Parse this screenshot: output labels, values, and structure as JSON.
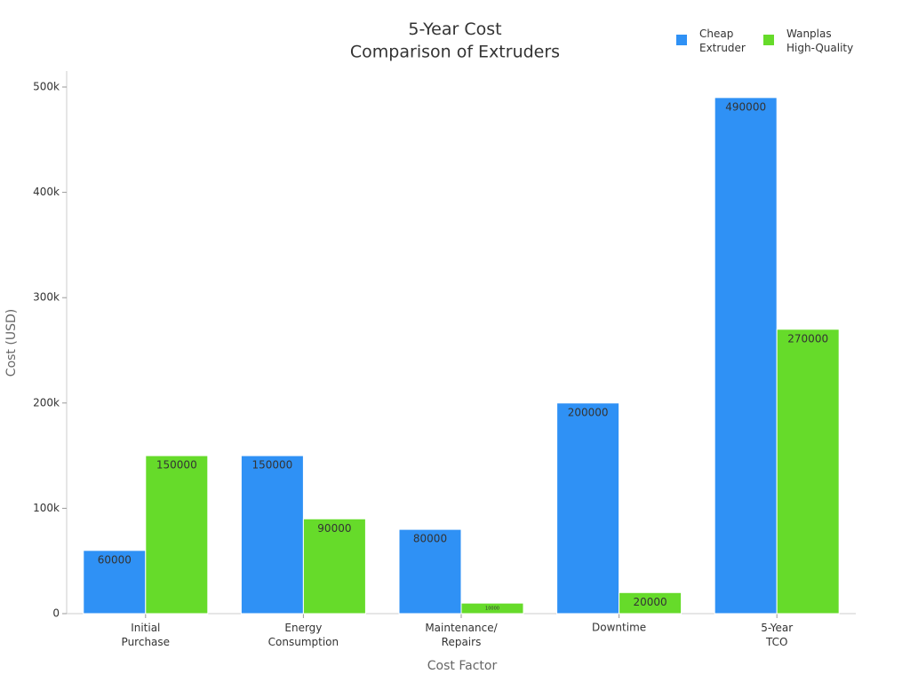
{
  "chart_data": {
    "type": "bar",
    "title": "5-Year Cost\nComparison of Extruders",
    "x_label": "Cost Factor",
    "y_label": "Cost (USD)",
    "categories": [
      "Initial\nPurchase",
      "Energy\nConsumption",
      "Maintenance/\nRepairs",
      "Downtime",
      "5-Year\nTCO"
    ],
    "series": [
      {
        "name": "Cheap\nExtruder",
        "color": "#2f91f5",
        "values": [
          60000,
          150000,
          80000,
          200000,
          490000
        ]
      },
      {
        "name": "Wanplas\nHigh-Quality",
        "color": "#66db2a",
        "values": [
          150000,
          90000,
          10000,
          20000,
          270000
        ]
      }
    ],
    "ylim": [
      0,
      515000
    ],
    "yticks": [
      0,
      {
        "value": 100000,
        "label": "100k"
      },
      {
        "value": 200000,
        "label": "200k"
      },
      {
        "value": 300000,
        "label": "300k"
      },
      {
        "value": 400000,
        "label": "400k"
      },
      {
        "value": 500000,
        "label": "500k"
      }
    ],
    "grid": false,
    "legend": "top-right"
  }
}
